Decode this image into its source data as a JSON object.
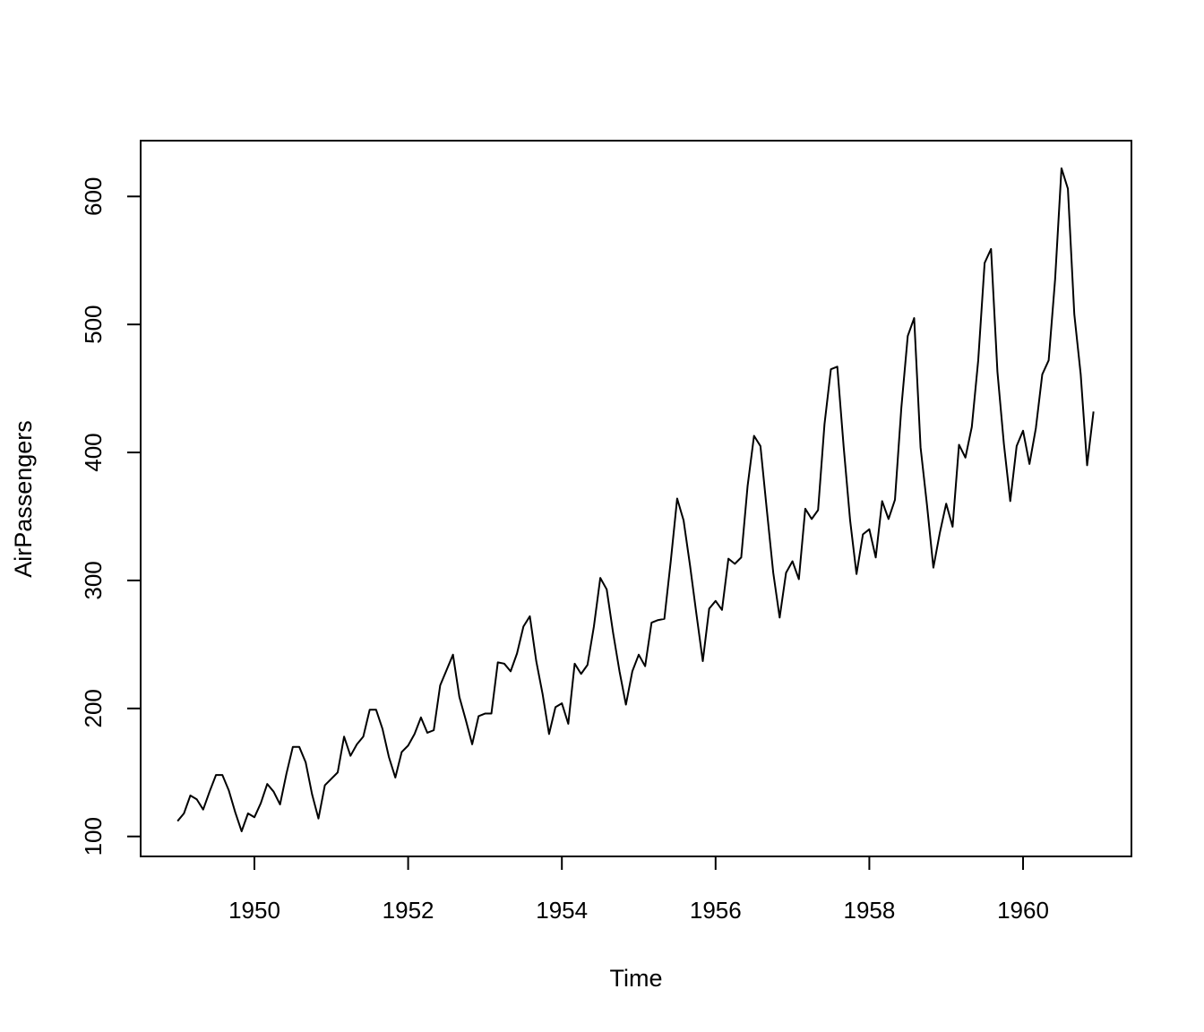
{
  "chart_data": {
    "type": "line",
    "title": "",
    "xlabel": "Time",
    "ylabel": "AirPassengers",
    "xlim": [
      1948.52,
      1961.41
    ],
    "ylim": [
      84.4,
      643.6
    ],
    "x_ticks": [
      1950,
      1952,
      1954,
      1956,
      1958,
      1960
    ],
    "x_tick_labels": [
      "1950",
      "1952",
      "1954",
      "1956",
      "1958",
      "1960"
    ],
    "y_ticks": [
      100,
      200,
      300,
      400,
      500,
      600
    ],
    "y_tick_labels": [
      "100",
      "200",
      "300",
      "400",
      "500",
      "600"
    ],
    "grid": false,
    "legend": "none",
    "line_color": "#000000",
    "series": [
      {
        "x_start": 1949,
        "x_step": 0.0833333,
        "values": [
          112,
          118,
          132,
          129,
          121,
          135,
          148,
          148,
          136,
          119,
          104,
          118,
          115,
          126,
          141,
          135,
          125,
          149,
          170,
          170,
          158,
          133,
          114,
          140,
          145,
          150,
          178,
          163,
          172,
          178,
          199,
          199,
          184,
          162,
          146,
          166,
          171,
          180,
          193,
          181,
          183,
          218,
          230,
          242,
          209,
          191,
          172,
          194,
          196,
          196,
          236,
          235,
          229,
          243,
          264,
          272,
          237,
          211,
          180,
          201,
          204,
          188,
          235,
          227,
          234,
          264,
          302,
          293,
          259,
          229,
          203,
          229,
          242,
          233,
          267,
          269,
          270,
          315,
          364,
          347,
          312,
          274,
          237,
          278,
          284,
          277,
          317,
          313,
          318,
          374,
          413,
          405,
          355,
          306,
          271,
          306,
          315,
          301,
          356,
          348,
          355,
          422,
          465,
          467,
          404,
          347,
          305,
          336,
          340,
          318,
          362,
          348,
          363,
          435,
          491,
          505,
          404,
          359,
          310,
          337,
          360,
          342,
          406,
          396,
          420,
          472,
          548,
          559,
          463,
          407,
          362,
          405,
          417,
          391,
          419,
          461,
          472,
          535,
          622,
          606,
          508,
          461,
          390,
          432
        ]
      }
    ]
  }
}
